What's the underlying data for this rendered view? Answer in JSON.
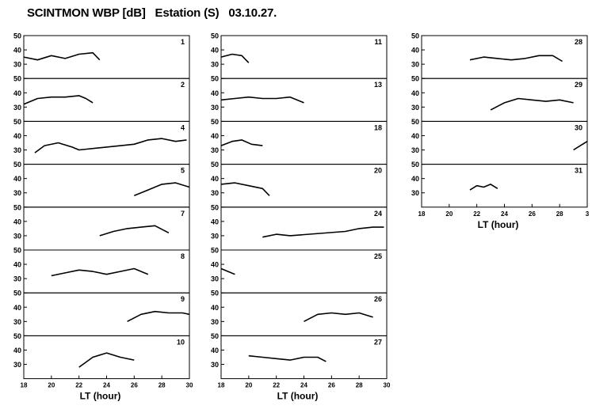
{
  "header": {
    "title": "SCINTMON WBP [dB]   Estation (S)   03.10.27."
  },
  "chart_data": {
    "type": "line",
    "title": "SCINTMON WBP [dB]   Estation (S)   03.10.27.",
    "xlabel": "LT (hour)",
    "ylabel": "",
    "xlim": [
      18,
      30
    ],
    "ylim": [
      20,
      50
    ],
    "x_ticks": [
      18,
      20,
      22,
      24,
      26,
      28,
      30
    ],
    "y_ticks": [
      30,
      40,
      50
    ],
    "columns": [
      {
        "x_tick_labels": [
          "18",
          "20",
          "22",
          "24",
          "26",
          "28",
          "30"
        ],
        "xlabel": "LT (hour)"
      },
      {
        "x_tick_labels": [
          "18",
          "20",
          "22",
          "24",
          "26",
          "28",
          "30"
        ],
        "xlabel": "LT (hour)"
      },
      {
        "x_tick_labels": [
          "18",
          "20",
          "22",
          "24",
          "26",
          "28",
          "3"
        ],
        "xlabel": "LT (hour)"
      }
    ],
    "panels": [
      {
        "col": 0,
        "row": 0,
        "label": "1",
        "x": [
          18,
          19,
          20,
          21,
          22,
          23,
          23.5
        ],
        "y": [
          35,
          33,
          36,
          34,
          37,
          38,
          33
        ]
      },
      {
        "col": 0,
        "row": 1,
        "label": "2",
        "x": [
          18,
          19,
          20,
          21,
          22,
          22.5,
          23
        ],
        "y": [
          32,
          36,
          37,
          37,
          38,
          36,
          33
        ]
      },
      {
        "col": 0,
        "row": 2,
        "label": "4",
        "x": [
          18.8,
          19.5,
          20.5,
          21.5,
          22,
          26,
          27,
          28,
          29,
          29.8
        ],
        "y": [
          28,
          33,
          35,
          32,
          30,
          34,
          37,
          38,
          36,
          37
        ]
      },
      {
        "col": 0,
        "row": 3,
        "label": "5",
        "x": [
          26,
          27,
          28,
          29,
          30
        ],
        "y": [
          28,
          32,
          36,
          37,
          34
        ]
      },
      {
        "col": 0,
        "row": 4,
        "label": "7",
        "x": [
          23.5,
          24.5,
          25.5,
          26.5,
          27.5,
          28.5
        ],
        "y": [
          30,
          33,
          35,
          36,
          37,
          32
        ]
      },
      {
        "col": 0,
        "row": 5,
        "label": "8",
        "x": [
          20,
          21,
          22,
          23,
          24,
          25,
          26,
          27
        ],
        "y": [
          32,
          34,
          36,
          35,
          33,
          35,
          37,
          33
        ]
      },
      {
        "col": 0,
        "row": 6,
        "label": "9",
        "x": [
          25.5,
          26.5,
          27.5,
          28.5,
          29.5,
          30
        ],
        "y": [
          30,
          35,
          37,
          36,
          36,
          35
        ]
      },
      {
        "col": 0,
        "row": 7,
        "label": "10",
        "x": [
          22,
          23,
          24,
          25,
          26
        ],
        "y": [
          28,
          35,
          38,
          35,
          33
        ]
      },
      {
        "col": 1,
        "row": 0,
        "label": "11",
        "x": [
          18,
          18.8,
          19.5,
          20
        ],
        "y": [
          35,
          37,
          36,
          31
        ]
      },
      {
        "col": 1,
        "row": 1,
        "label": "13",
        "x": [
          18,
          19,
          20,
          21,
          22,
          23,
          24
        ],
        "y": [
          35,
          36,
          37,
          36,
          36,
          37,
          33
        ]
      },
      {
        "col": 1,
        "row": 2,
        "label": "18",
        "x": [
          18,
          18.8,
          19.5,
          20.2,
          21
        ],
        "y": [
          33,
          36,
          37,
          34,
          33
        ]
      },
      {
        "col": 1,
        "row": 3,
        "label": "20",
        "x": [
          18,
          19,
          20,
          21,
          21.5
        ],
        "y": [
          36,
          37,
          35,
          33,
          28
        ]
      },
      {
        "col": 1,
        "row": 4,
        "label": "24",
        "x": [
          21,
          22,
          23,
          27,
          28,
          29,
          29.8
        ],
        "y": [
          29,
          31,
          30,
          33,
          35,
          36,
          36
        ]
      },
      {
        "col": 1,
        "row": 5,
        "label": "25",
        "x": [
          18,
          18.5,
          19
        ],
        "y": [
          37,
          35,
          33
        ]
      },
      {
        "col": 1,
        "row": 6,
        "label": "26",
        "x": [
          24,
          25,
          26,
          27,
          28,
          29
        ],
        "y": [
          30,
          35,
          36,
          35,
          36,
          33
        ]
      },
      {
        "col": 1,
        "row": 7,
        "label": "27",
        "x": [
          20,
          21,
          22,
          23,
          24,
          25,
          25.6
        ],
        "y": [
          36,
          35,
          34,
          33,
          35,
          35,
          32
        ]
      },
      {
        "col": 2,
        "row": 0,
        "label": "28",
        "x": [
          21.5,
          22.5,
          23.5,
          24.5,
          25.5,
          26.5,
          27.5,
          28.2
        ],
        "y": [
          33,
          35,
          34,
          33,
          34,
          36,
          36,
          32
        ]
      },
      {
        "col": 2,
        "row": 1,
        "label": "29",
        "x": [
          23,
          24,
          25,
          26,
          27,
          28,
          29
        ],
        "y": [
          28,
          33,
          36,
          35,
          34,
          35,
          33
        ]
      },
      {
        "col": 2,
        "row": 2,
        "label": "30",
        "x": [
          29,
          29.5,
          30
        ],
        "y": [
          30,
          33,
          36
        ]
      },
      {
        "col": 2,
        "row": 3,
        "label": "31",
        "x": [
          21.5,
          22,
          22.5,
          23,
          23.5
        ],
        "y": [
          32,
          35,
          34,
          36,
          33
        ]
      }
    ],
    "grid": false,
    "colors": {
      "line": "#000000",
      "background": "#ffffff"
    }
  }
}
